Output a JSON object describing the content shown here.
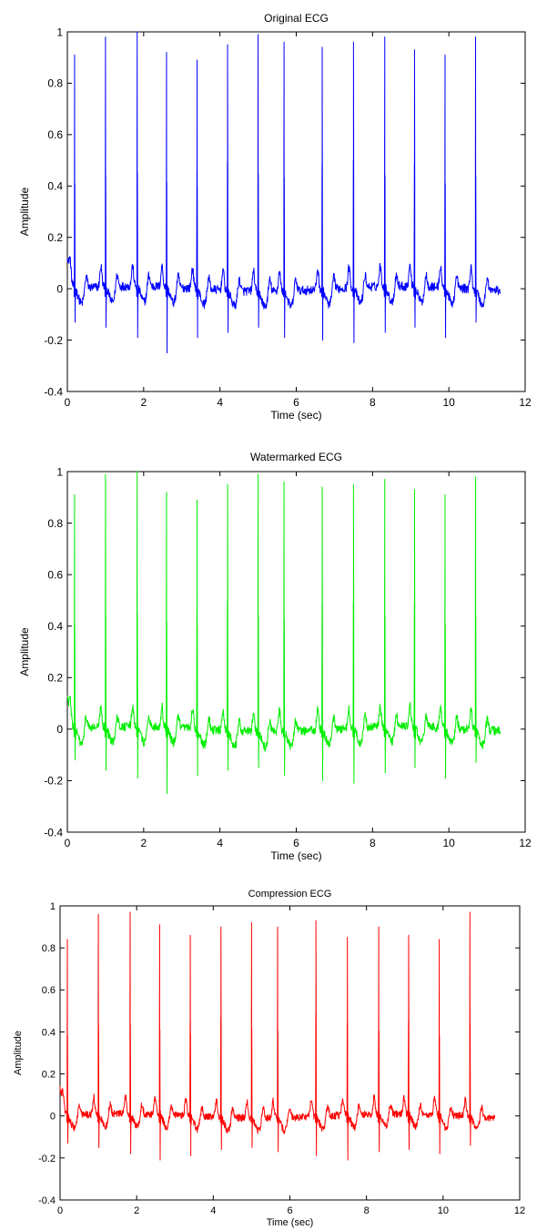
{
  "chart_data": [
    {
      "type": "line",
      "title": "Original ECG",
      "xlabel": "Time (sec)",
      "ylabel": "Amplitude",
      "xlim": [
        0,
        12
      ],
      "ylim": [
        -0.4,
        1
      ],
      "xticks": [
        "0",
        "2",
        "4",
        "6",
        "8",
        "10",
        "12"
      ],
      "yticks": [
        "-0.4",
        "-0.2",
        "0",
        "0.2",
        "0.4",
        "0.6",
        "0.8",
        "1"
      ],
      "grid": false,
      "color": "#0000ff",
      "duration": 11.35,
      "r_peaks": [
        {
          "t": 0.19,
          "r": 0.91,
          "s": -0.13
        },
        {
          "t": 1.0,
          "r": 0.98,
          "s": -0.15
        },
        {
          "t": 1.83,
          "r": 1.0,
          "s": -0.19
        },
        {
          "t": 2.6,
          "r": 0.92,
          "s": -0.25
        },
        {
          "t": 3.4,
          "r": 0.89,
          "s": -0.19
        },
        {
          "t": 4.2,
          "r": 0.95,
          "s": -0.17
        },
        {
          "t": 5.0,
          "r": 0.99,
          "s": -0.15
        },
        {
          "t": 5.68,
          "r": 0.96,
          "s": -0.19
        },
        {
          "t": 6.68,
          "r": 0.94,
          "s": -0.2
        },
        {
          "t": 7.5,
          "r": 0.96,
          "s": -0.21
        },
        {
          "t": 8.32,
          "r": 0.98,
          "s": -0.17
        },
        {
          "t": 9.1,
          "r": 0.93,
          "s": -0.15
        },
        {
          "t": 9.9,
          "r": 0.91,
          "s": -0.19
        },
        {
          "t": 10.7,
          "r": 0.98,
          "s": -0.13
        }
      ]
    },
    {
      "type": "line",
      "title": "Watermarked ECG",
      "xlabel": "Time (sec)",
      "ylabel": "Amplitude",
      "xlim": [
        0,
        12
      ],
      "ylim": [
        -0.4,
        1
      ],
      "xticks": [
        "0",
        "2",
        "4",
        "6",
        "8",
        "10",
        "12"
      ],
      "yticks": [
        "-0.4",
        "-0.2",
        "0",
        "0.2",
        "0.4",
        "0.6",
        "0.8",
        "1"
      ],
      "grid": false,
      "color": "#00ee00",
      "duration": 11.35,
      "r_peaks": [
        {
          "t": 0.19,
          "r": 0.91,
          "s": -0.12
        },
        {
          "t": 1.0,
          "r": 0.99,
          "s": -0.16
        },
        {
          "t": 1.83,
          "r": 1.0,
          "s": -0.19
        },
        {
          "t": 2.6,
          "r": 0.92,
          "s": -0.25
        },
        {
          "t": 3.4,
          "r": 0.89,
          "s": -0.18
        },
        {
          "t": 4.2,
          "r": 0.95,
          "s": -0.16
        },
        {
          "t": 5.0,
          "r": 0.99,
          "s": -0.15
        },
        {
          "t": 5.68,
          "r": 0.96,
          "s": -0.18
        },
        {
          "t": 6.68,
          "r": 0.94,
          "s": -0.2
        },
        {
          "t": 7.5,
          "r": 0.95,
          "s": -0.21
        },
        {
          "t": 8.32,
          "r": 0.97,
          "s": -0.17
        },
        {
          "t": 9.1,
          "r": 0.93,
          "s": -0.15
        },
        {
          "t": 9.9,
          "r": 0.91,
          "s": -0.19
        },
        {
          "t": 10.7,
          "r": 0.98,
          "s": -0.13
        }
      ]
    },
    {
      "type": "line",
      "title": "Compression ECG",
      "xlabel": "Time (sec)",
      "ylabel": "Amplitude",
      "xlim": [
        0,
        12
      ],
      "ylim": [
        -0.4,
        1
      ],
      "xticks": [
        "0",
        "2",
        "4",
        "6",
        "8",
        "10",
        "12"
      ],
      "yticks": [
        "-0.4",
        "-0.2",
        "0",
        "0.2",
        "0.4",
        "0.6",
        "0.8",
        "1"
      ],
      "grid": false,
      "color": "#ff0000",
      "duration": 11.35,
      "r_peaks": [
        {
          "t": 0.19,
          "r": 0.84,
          "s": -0.13
        },
        {
          "t": 1.0,
          "r": 0.96,
          "s": -0.15
        },
        {
          "t": 1.83,
          "r": 0.97,
          "s": -0.18
        },
        {
          "t": 2.6,
          "r": 0.91,
          "s": -0.21
        },
        {
          "t": 3.4,
          "r": 0.86,
          "s": -0.19
        },
        {
          "t": 4.2,
          "r": 0.9,
          "s": -0.16
        },
        {
          "t": 5.0,
          "r": 0.92,
          "s": -0.15
        },
        {
          "t": 5.68,
          "r": 0.9,
          "s": -0.17
        },
        {
          "t": 6.68,
          "r": 0.93,
          "s": -0.19
        },
        {
          "t": 7.5,
          "r": 0.85,
          "s": -0.21
        },
        {
          "t": 8.32,
          "r": 0.9,
          "s": -0.17
        },
        {
          "t": 9.1,
          "r": 0.86,
          "s": -0.16
        },
        {
          "t": 9.9,
          "r": 0.84,
          "s": -0.18
        },
        {
          "t": 10.7,
          "r": 0.97,
          "s": -0.14
        }
      ]
    }
  ]
}
